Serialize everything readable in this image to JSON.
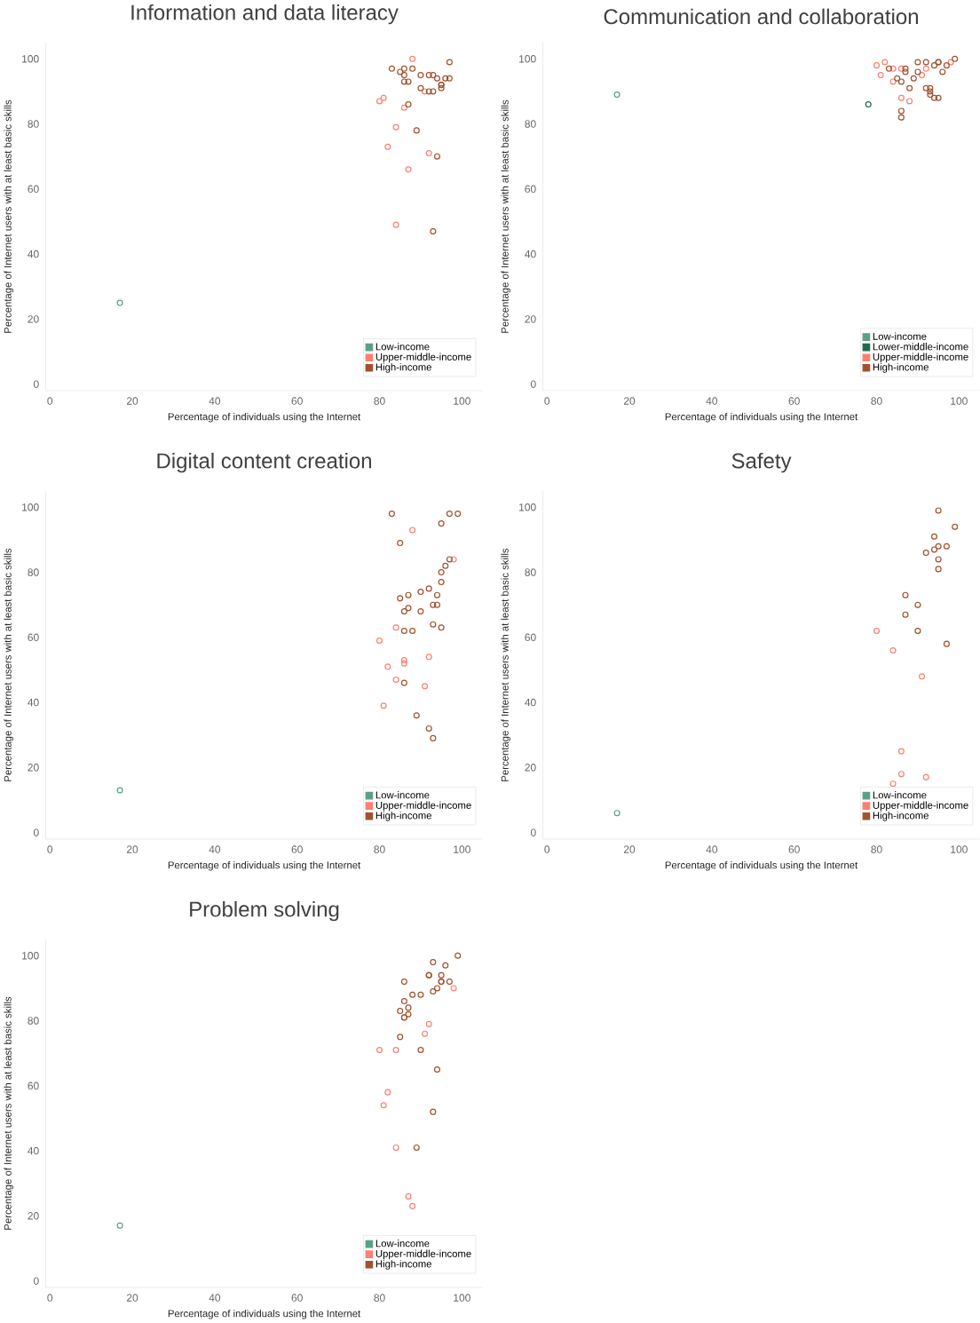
{
  "chart_data": [
    {
      "type": "scatter",
      "title": "Information and data literacy",
      "xlabel": "Percentage of individuals using the Internet",
      "ylabel": "Percentage of Internet users with at least basic skills",
      "xlim": [
        -1,
        105
      ],
      "ylim": [
        -2,
        105
      ],
      "xticks": [
        0,
        20,
        40,
        60,
        80,
        100
      ],
      "yticks": [
        0,
        20,
        40,
        60,
        80,
        100
      ],
      "legend": "bottom right",
      "marker": "circle",
      "series": [
        {
          "name": "Low-income",
          "color": "#5f9e86",
          "x": [
            17
          ],
          "values": [
            25
          ]
        },
        {
          "name": "Upper-middle-income",
          "color": "#fa8072",
          "x": [
            88,
            91,
            81,
            80,
            86,
            84,
            82,
            92,
            87,
            84
          ],
          "values": [
            100,
            90,
            88,
            87,
            85,
            79,
            73,
            71,
            66,
            49
          ]
        },
        {
          "name": "High-income",
          "color": "#a0522d",
          "x": [
            97,
            83,
            85,
            86,
            88,
            86,
            86,
            87,
            90,
            92,
            93,
            94,
            96,
            97,
            90,
            92,
            93,
            95,
            95,
            95,
            87,
            89,
            94,
            93
          ],
          "values": [
            99,
            97,
            96,
            97,
            97,
            95,
            93,
            93,
            95,
            95,
            95,
            94,
            94,
            94,
            91,
            90,
            90,
            92,
            92,
            91,
            86,
            78,
            70,
            47
          ]
        }
      ]
    },
    {
      "type": "scatter",
      "title": "Communication and collaboration",
      "xlabel": "Percentage of individuals using the Internet",
      "ylabel": "Percentage of Internet users with at least basic skills",
      "xlim": [
        -1,
        105
      ],
      "ylim": [
        -2,
        105
      ],
      "xticks": [
        0,
        20,
        40,
        60,
        80,
        100
      ],
      "yticks": [
        0,
        20,
        40,
        60,
        80,
        100
      ],
      "legend": "bottom right",
      "marker": "circle",
      "series": [
        {
          "name": "Low-income",
          "color": "#5f9e86",
          "x": [
            17
          ],
          "values": [
            89
          ]
        },
        {
          "name": "Lower-middle-income",
          "color": "#1f6b4f",
          "x": [
            78
          ],
          "values": [
            86
          ]
        },
        {
          "name": "Upper-middle-income",
          "color": "#fa8072",
          "x": [
            82,
            80,
            81,
            84,
            86,
            84,
            92,
            91,
            98,
            86,
            88
          ],
          "values": [
            99,
            98,
            95,
            97,
            97,
            93,
            97,
            95,
            99,
            88,
            87
          ]
        },
        {
          "name": "High-income",
          "color": "#a0522d",
          "x": [
            83,
            87,
            87,
            90,
            92,
            90,
            89,
            85,
            86,
            94,
            95,
            95,
            96,
            97,
            99,
            88,
            92,
            93,
            93,
            93,
            94,
            95,
            86,
            86
          ],
          "values": [
            97,
            97,
            96,
            99,
            99,
            96,
            94,
            94,
            93,
            98,
            99,
            99,
            96,
            98,
            100,
            91,
            91,
            91,
            90,
            89,
            88,
            88,
            84,
            82
          ]
        }
      ]
    },
    {
      "type": "scatter",
      "title": "Digital content creation",
      "xlabel": "Percentage of individuals using the Internet",
      "ylabel": "Percentage of Internet users with at least basic skills",
      "xlim": [
        -1,
        105
      ],
      "ylim": [
        -2,
        105
      ],
      "xticks": [
        0,
        20,
        40,
        60,
        80,
        100
      ],
      "yticks": [
        0,
        20,
        40,
        60,
        80,
        100
      ],
      "legend": "bottom right",
      "marker": "circle",
      "series": [
        {
          "name": "Low-income",
          "color": "#5f9e86",
          "x": [
            17
          ],
          "values": [
            13
          ]
        },
        {
          "name": "Upper-middle-income",
          "color": "#fa8072",
          "x": [
            88,
            98,
            84,
            80,
            86,
            86,
            92,
            82,
            84,
            91,
            81
          ],
          "values": [
            93,
            84,
            63,
            59,
            53,
            52,
            54,
            51,
            47,
            45,
            39
          ]
        },
        {
          "name": "High-income",
          "color": "#a0522d",
          "x": [
            83,
            97,
            99,
            95,
            85,
            97,
            96,
            95,
            95,
            90,
            92,
            94,
            87,
            85,
            93,
            94,
            87,
            86,
            90,
            86,
            88,
            93,
            95,
            86,
            89,
            92,
            93
          ],
          "values": [
            98,
            98,
            98,
            95,
            89,
            84,
            82,
            80,
            77,
            74,
            75,
            73,
            73,
            72,
            70,
            70,
            69,
            68,
            68,
            62,
            62,
            64,
            63,
            46,
            36,
            32,
            29
          ]
        }
      ]
    },
    {
      "type": "scatter",
      "title": "Safety",
      "xlabel": "Percentage of individuals using the Internet",
      "ylabel": "Percentage of Internet users with at least basic skills",
      "xlim": [
        -1,
        105
      ],
      "ylim": [
        -2,
        105
      ],
      "xticks": [
        0,
        20,
        40,
        60,
        80,
        100
      ],
      "yticks": [
        0,
        20,
        40,
        60,
        80,
        100
      ],
      "legend": "bottom right",
      "marker": "circle",
      "series": [
        {
          "name": "Low-income",
          "color": "#5f9e86",
          "x": [
            17
          ],
          "values": [
            6
          ]
        },
        {
          "name": "Upper-middle-income",
          "color": "#fa8072",
          "x": [
            80,
            84,
            91,
            86,
            86,
            92,
            84
          ],
          "values": [
            62,
            56,
            48,
            25,
            18,
            17,
            15
          ]
        },
        {
          "name": "High-income",
          "color": "#a0522d",
          "x": [
            95,
            99,
            94,
            97,
            95,
            94,
            92,
            95,
            95,
            87,
            90,
            87,
            90,
            97
          ],
          "values": [
            99,
            94,
            91,
            88,
            88,
            87,
            86,
            84,
            81,
            73,
            70,
            67,
            62,
            58
          ]
        }
      ]
    },
    {
      "type": "scatter",
      "title": "Problem solving",
      "xlabel": "Percentage of individuals using the Internet",
      "ylabel": "Percentage of Internet users with at least basic skills",
      "xlim": [
        -1,
        105
      ],
      "ylim": [
        -2,
        105
      ],
      "xticks": [
        0,
        20,
        40,
        60,
        80,
        100
      ],
      "yticks": [
        0,
        20,
        40,
        60,
        80,
        100
      ],
      "legend": "bottom right",
      "marker": "circle",
      "series": [
        {
          "name": "Low-income",
          "color": "#5f9e86",
          "x": [
            17
          ],
          "values": [
            17
          ]
        },
        {
          "name": "Upper-middle-income",
          "color": "#fa8072",
          "x": [
            98,
            86,
            92,
            91,
            80,
            84,
            82,
            81,
            84,
            87,
            88
          ],
          "values": [
            90,
            81,
            79,
            76,
            71,
            71,
            58,
            54,
            41,
            26,
            23
          ]
        },
        {
          "name": "High-income",
          "color": "#a0522d",
          "x": [
            99,
            93,
            96,
            92,
            92,
            95,
            86,
            95,
            97,
            95,
            94,
            93,
            88,
            90,
            86,
            87,
            85,
            87,
            86,
            85,
            90,
            94,
            93,
            89
          ],
          "values": [
            100,
            98,
            97,
            94,
            94,
            94,
            92,
            92,
            92,
            92,
            90,
            89,
            88,
            88,
            86,
            84,
            83,
            82,
            81,
            75,
            71,
            65,
            52,
            41
          ]
        }
      ]
    }
  ]
}
